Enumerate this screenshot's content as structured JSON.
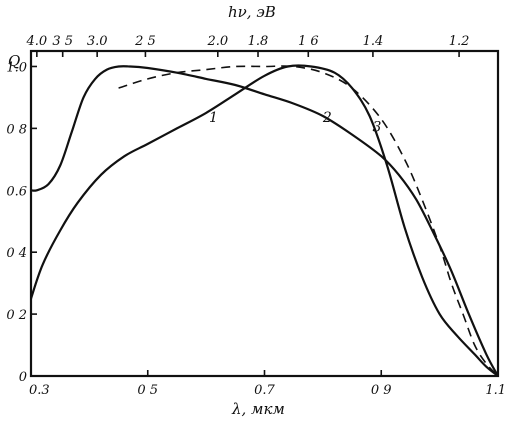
{
  "chart_data": {
    "type": "line",
    "xlabel": "λ, мкм",
    "x2label": "hν, эВ",
    "ylabel": "Q",
    "xlim": [
      0.3,
      1.1
    ],
    "ylim": [
      0,
      1.05
    ],
    "x_ticks": [
      {
        "value": 0.3,
        "label": "0.3"
      },
      {
        "value": 0.5,
        "label": "0 5"
      },
      {
        "value": 0.7,
        "label": "0.7"
      },
      {
        "value": 0.9,
        "label": "0 9"
      },
      {
        "value": 1.1,
        "label": "1.1"
      }
    ],
    "y_ticks": [
      {
        "value": 0,
        "label": "0"
      },
      {
        "value": 0.2,
        "label": "0 2"
      },
      {
        "value": 0.4,
        "label": "0 4"
      },
      {
        "value": 0.6,
        "label": "0.6"
      },
      {
        "value": 0.8,
        "label": "0 8"
      },
      {
        "value": 1.0,
        "label": "1.0"
      }
    ],
    "top_ticks": [
      {
        "value": 4.0,
        "label": "4.0"
      },
      {
        "value": 3.5,
        "label": "3 5"
      },
      {
        "value": 3.0,
        "label": "3.0"
      },
      {
        "value": 2.5,
        "label": "2 5"
      },
      {
        "value": 2.0,
        "label": "2.0"
      },
      {
        "value": 1.8,
        "label": "1.8"
      },
      {
        "value": 1.6,
        "label": "1 6"
      },
      {
        "value": 1.4,
        "label": "1.4"
      },
      {
        "value": 1.2,
        "label": "1.2"
      }
    ],
    "series": [
      {
        "name": "1",
        "style": "solid",
        "label_at": [
          0.605,
          0.82
        ],
        "x": [
          0.3,
          0.32,
          0.35,
          0.38,
          0.42,
          0.46,
          0.5,
          0.55,
          0.6,
          0.65,
          0.7,
          0.74,
          0.78,
          0.82,
          0.85,
          0.88,
          0.91,
          0.94,
          0.97,
          1.0,
          1.03,
          1.06,
          1.08,
          1.1
        ],
        "y": [
          0.25,
          0.36,
          0.47,
          0.56,
          0.65,
          0.71,
          0.75,
          0.8,
          0.85,
          0.91,
          0.97,
          1.0,
          1.0,
          0.98,
          0.93,
          0.84,
          0.68,
          0.48,
          0.32,
          0.2,
          0.13,
          0.07,
          0.03,
          0.0
        ]
      },
      {
        "name": "2",
        "style": "solid",
        "label_at": [
          0.8,
          0.82
        ],
        "x": [
          0.3,
          0.31,
          0.33,
          0.35,
          0.37,
          0.39,
          0.41,
          0.43,
          0.45,
          0.47,
          0.5,
          0.55,
          0.6,
          0.65,
          0.7,
          0.75,
          0.8,
          0.85,
          0.9,
          0.93,
          0.96,
          0.99,
          1.02,
          1.05,
          1.08,
          1.1
        ],
        "y": [
          0.6,
          0.6,
          0.62,
          0.68,
          0.79,
          0.9,
          0.96,
          0.99,
          1.0,
          1.0,
          0.995,
          0.98,
          0.96,
          0.94,
          0.91,
          0.88,
          0.84,
          0.78,
          0.71,
          0.65,
          0.57,
          0.46,
          0.34,
          0.2,
          0.07,
          0.0
        ]
      },
      {
        "name": "3",
        "style": "dashed",
        "label_at": [
          0.885,
          0.79
        ],
        "x": [
          0.45,
          0.5,
          0.55,
          0.6,
          0.65,
          0.7,
          0.75,
          0.8,
          0.85,
          0.9,
          0.94,
          0.97,
          1.0,
          1.02,
          1.04,
          1.06,
          1.08,
          1.1
        ],
        "y": [
          0.93,
          0.96,
          0.98,
          0.99,
          1.0,
          1.0,
          1.0,
          0.98,
          0.93,
          0.83,
          0.7,
          0.57,
          0.42,
          0.3,
          0.2,
          0.1,
          0.04,
          0.0
        ]
      }
    ]
  }
}
